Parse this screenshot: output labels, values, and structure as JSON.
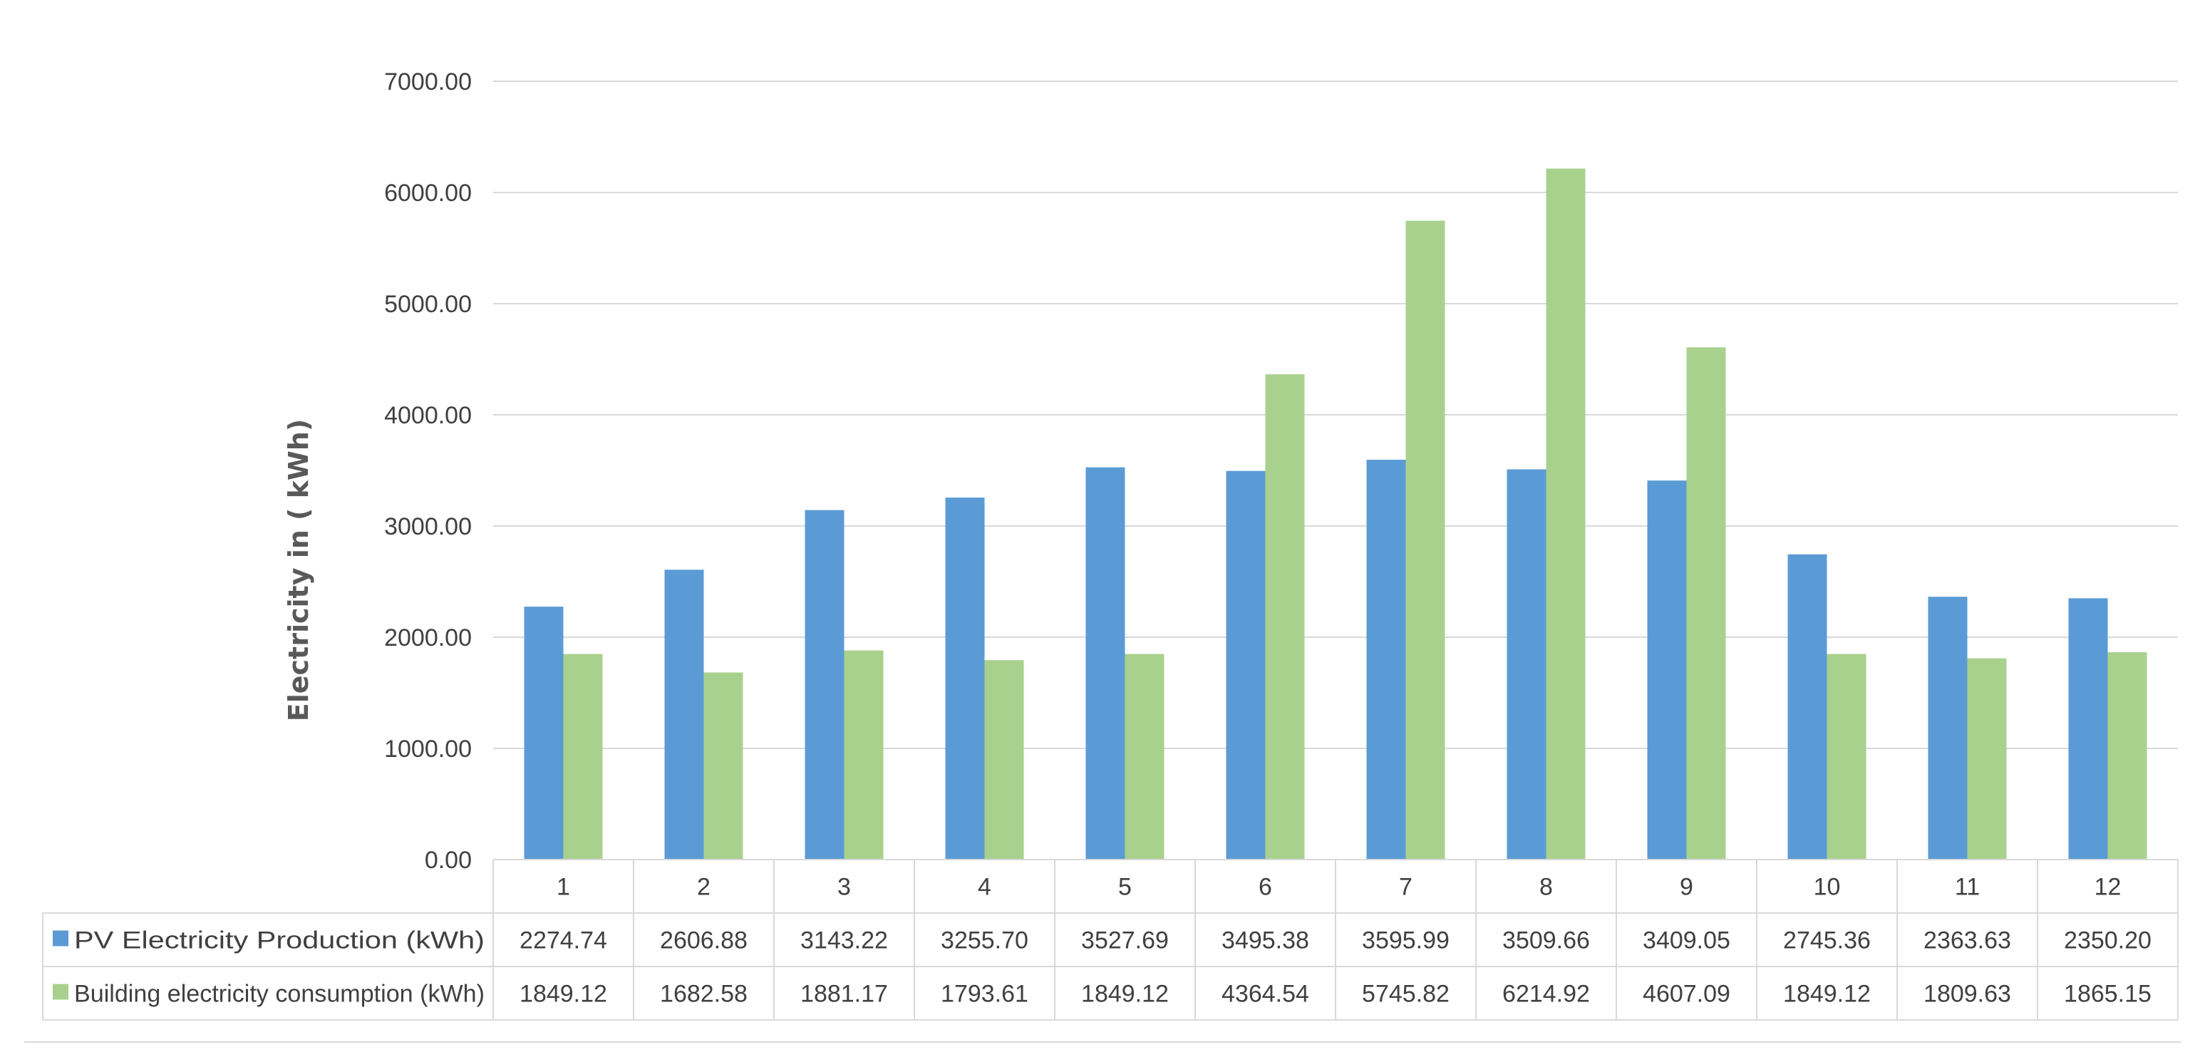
{
  "chart_data": {
    "type": "bar",
    "ylabel": "Electricity in ( kWh)",
    "xlabel": "",
    "title": "",
    "ylim": [
      0,
      7000
    ],
    "yticks": [
      "0.00",
      "1000.00",
      "2000.00",
      "3000.00",
      "4000.00",
      "5000.00",
      "6000.00",
      "7000.00"
    ],
    "grid": true,
    "legend": "data-table",
    "categories": [
      "1",
      "2",
      "3",
      "4",
      "5",
      "6",
      "7",
      "8",
      "9",
      "10",
      "11",
      "12"
    ],
    "series": [
      {
        "name": "PV Electricity Production (kWh)",
        "color": "#5b9bd5",
        "values": [
          2274.74,
          2606.88,
          3143.22,
          3255.7,
          3527.69,
          3495.38,
          3595.99,
          3509.66,
          3409.05,
          2745.36,
          2363.63,
          2350.2
        ],
        "labels": [
          "2274.74",
          "2606.88",
          "3143.22",
          "3255.70",
          "3527.69",
          "3495.38",
          "3595.99",
          "3509.66",
          "3409.05",
          "2745.36",
          "2363.63",
          "2350.20"
        ]
      },
      {
        "name": "Building electricity consumption (kWh)",
        "color": "#a9d18e",
        "values": [
          1849.12,
          1682.58,
          1881.17,
          1793.61,
          1849.12,
          4364.54,
          5745.82,
          6214.92,
          4607.09,
          1849.12,
          1809.63,
          1865.15
        ],
        "labels": [
          "1849.12",
          "1682.58",
          "1881.17",
          "1793.61",
          "1849.12",
          "4364.54",
          "5745.82",
          "6214.92",
          "4607.09",
          "1849.12",
          "1809.63",
          "1865.15"
        ]
      }
    ]
  }
}
